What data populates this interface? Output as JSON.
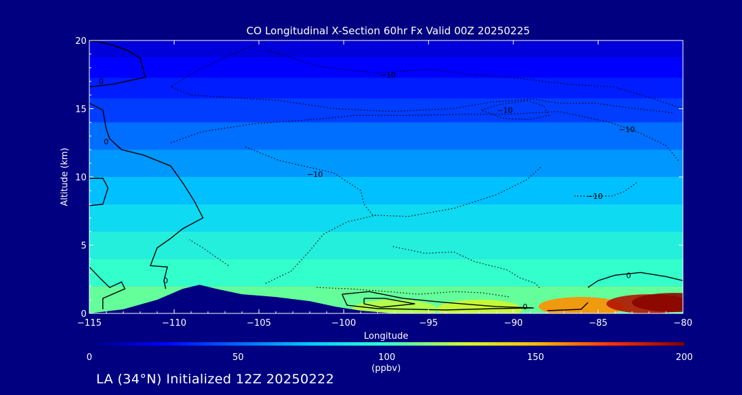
{
  "chart_data": {
    "type": "heatmap",
    "title": "CO Longitudinal X-Section 60hr  Fx Valid 00Z 20250225",
    "xlabel": "Longitude",
    "ylabel": "Altitude (km)",
    "xlim": [
      -115,
      -80
    ],
    "ylim": [
      0,
      20
    ],
    "x_ticks": [
      -115,
      -110,
      -105,
      -100,
      -95,
      -90,
      -85,
      -80
    ],
    "x_tick_labels": [
      "−115",
      "−110",
      "−105",
      "−100",
      "−95",
      "−90",
      "−85",
      "−80"
    ],
    "y_ticks": [
      0,
      5,
      10,
      15,
      20
    ],
    "y_tick_labels": [
      "0",
      "5",
      "10",
      "15",
      "20"
    ],
    "colorbar": {
      "min": 0,
      "max": 200,
      "ticks": [
        0,
        50,
        100,
        150,
        200
      ],
      "tick_labels": [
        "0",
        "50",
        "100",
        "150",
        "200"
      ],
      "label": "(ppbv)"
    },
    "field_levels": [
      {
        "z": 19.5,
        "ppbv": 18
      },
      {
        "z": 18,
        "ppbv": 25
      },
      {
        "z": 16.5,
        "ppbv": 32
      },
      {
        "z": 15,
        "ppbv": 40
      },
      {
        "z": 13,
        "ppbv": 52
      },
      {
        "z": 11,
        "ppbv": 62
      },
      {
        "z": 9,
        "ppbv": 72
      },
      {
        "z": 7,
        "ppbv": 82
      },
      {
        "z": 5,
        "ppbv": 92
      },
      {
        "z": 3,
        "ppbv": 100
      },
      {
        "z": 1,
        "ppbv": 108
      }
    ],
    "surface_enhancement": [
      {
        "lon": -97,
        "z": 0.3,
        "ppbv": 122
      },
      {
        "lon": -92,
        "z": 0.3,
        "ppbv": 128
      },
      {
        "lon": -86,
        "z": 0.5,
        "ppbv": 158
      },
      {
        "lon": -82,
        "z": 0.7,
        "ppbv": 190
      },
      {
        "lon": -80.5,
        "z": 0.8,
        "ppbv": 198
      }
    ],
    "contour_labels": [
      {
        "text": "0",
        "lon": -114.3,
        "z": 17.0
      },
      {
        "text": "0",
        "lon": -114.0,
        "z": 12.6
      },
      {
        "text": "0",
        "lon": -110.5,
        "z": 2.4
      },
      {
        "text": "0",
        "lon": -89.3,
        "z": 0.5
      },
      {
        "text": "0",
        "lon": -83.2,
        "z": 2.8
      },
      {
        "text": "−10",
        "lon": -97.4,
        "z": 17.5
      },
      {
        "text": "−10",
        "lon": -90.5,
        "z": 14.9
      },
      {
        "text": "−10",
        "lon": -83.3,
        "z": 13.5
      },
      {
        "text": "−10",
        "lon": -101.7,
        "z": 10.2
      },
      {
        "text": "−10",
        "lon": -85.2,
        "z": 8.6
      }
    ],
    "terrain": [
      [
        -115,
        0.0
      ],
      [
        -113,
        0.3
      ],
      [
        -111,
        1.0
      ],
      [
        -109.5,
        1.8
      ],
      [
        -108.5,
        2.1
      ],
      [
        -107.5,
        1.8
      ],
      [
        -106,
        1.4
      ],
      [
        -104,
        1.2
      ],
      [
        -102,
        0.9
      ],
      [
        -100.5,
        0.5
      ],
      [
        -99,
        0.2
      ],
      [
        -97,
        0.0
      ],
      [
        -80,
        0.0
      ]
    ]
  },
  "footer": {
    "text": "LA (34°N) Initialized 12Z 20250222"
  }
}
